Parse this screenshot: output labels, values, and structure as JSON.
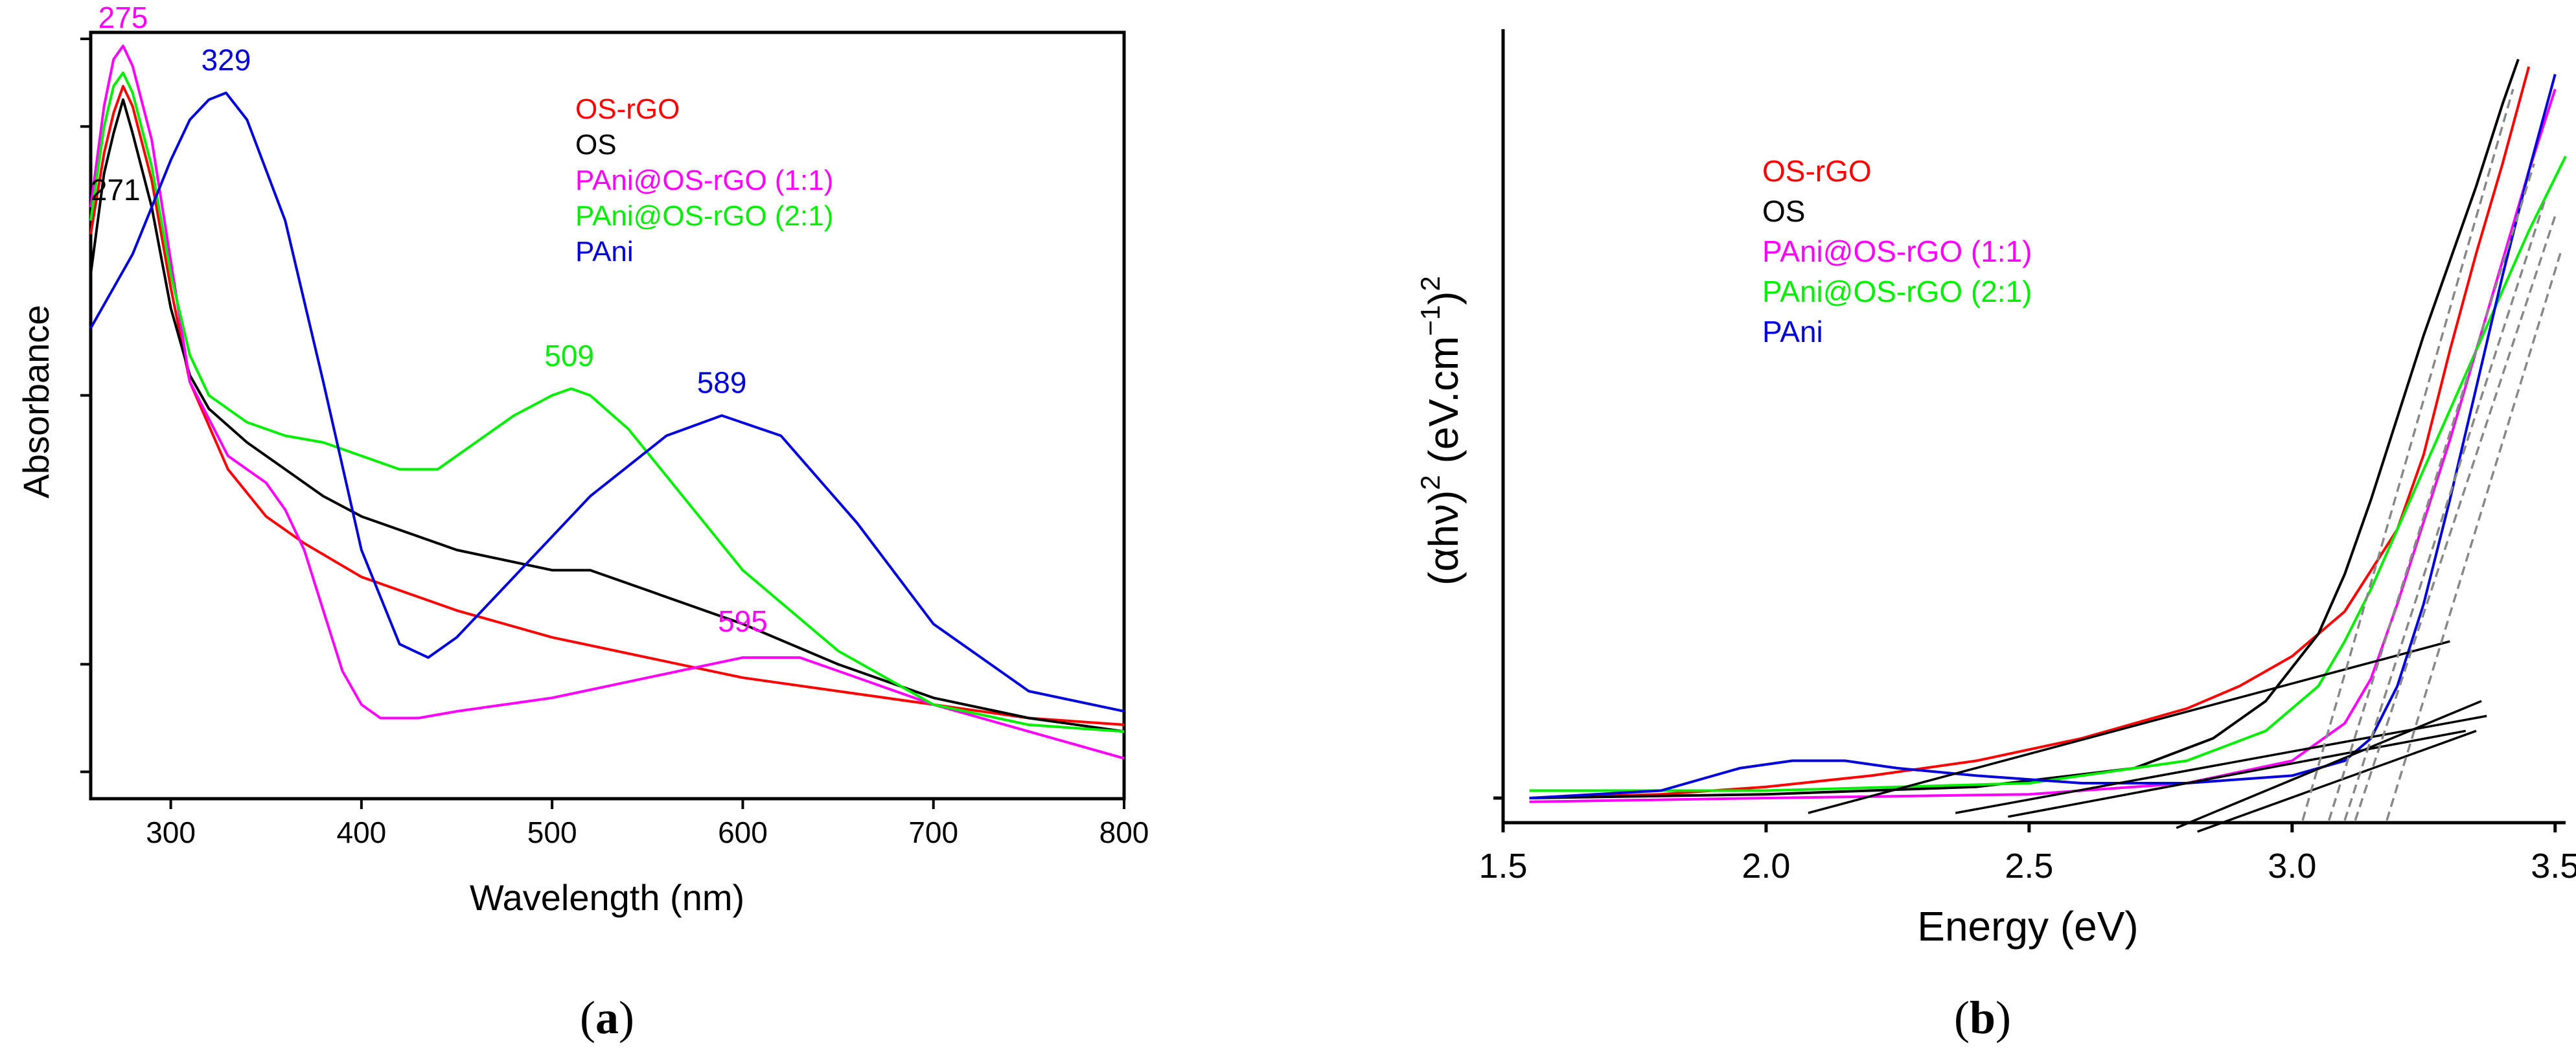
{
  "chart_data": [
    {
      "panel": "(a)",
      "panel_letter": "a",
      "type": "line",
      "xlabel": "Wavelength (nm)",
      "ylabel": "Absorbance",
      "xlim": [
        258,
        800
      ],
      "ylim": [
        -0.06,
        1.08
      ],
      "xticks": [
        300,
        400,
        500,
        600,
        700,
        800
      ],
      "yticks": [
        -0.02,
        0.14,
        0.54,
        0.94,
        1.1
      ],
      "legend_position": "top-right",
      "series": [
        {
          "name": "OS-rGO",
          "color": "#ff0000",
          "x": [
            258,
            265,
            270,
            275,
            280,
            290,
            300,
            310,
            330,
            350,
            370,
            400,
            450,
            500,
            550,
            600,
            650,
            700,
            750,
            800
          ],
          "y": [
            0.78,
            0.9,
            0.96,
            1.0,
            0.97,
            0.86,
            0.7,
            0.56,
            0.43,
            0.36,
            0.32,
            0.27,
            0.22,
            0.18,
            0.15,
            0.12,
            0.1,
            0.08,
            0.06,
            0.05
          ]
        },
        {
          "name": "OS",
          "color": "#000000",
          "x": [
            258,
            265,
            270,
            275,
            280,
            290,
            300,
            310,
            320,
            340,
            360,
            380,
            400,
            450,
            500,
            520,
            550,
            600,
            650,
            700,
            750,
            800
          ],
          "y": [
            0.72,
            0.87,
            0.93,
            0.98,
            0.93,
            0.82,
            0.67,
            0.57,
            0.52,
            0.47,
            0.43,
            0.39,
            0.36,
            0.31,
            0.28,
            0.28,
            0.25,
            0.2,
            0.14,
            0.09,
            0.06,
            0.04
          ]
        },
        {
          "name": "PAni@OS-rGO (1:1)",
          "color": "#ff00ff",
          "x": [
            258,
            265,
            270,
            275,
            280,
            290,
            300,
            310,
            330,
            350,
            360,
            370,
            380,
            390,
            400,
            410,
            430,
            450,
            500,
            550,
            600,
            630,
            650,
            700,
            750,
            800
          ],
          "y": [
            0.82,
            0.97,
            1.04,
            1.06,
            1.03,
            0.92,
            0.74,
            0.56,
            0.45,
            0.41,
            0.37,
            0.31,
            0.22,
            0.13,
            0.08,
            0.06,
            0.06,
            0.07,
            0.09,
            0.12,
            0.15,
            0.15,
            0.13,
            0.08,
            0.04,
            0.0
          ]
        },
        {
          "name": "PAni@OS-rGO (2:1)",
          "color": "#00ee00",
          "x": [
            258,
            265,
            270,
            275,
            280,
            290,
            300,
            310,
            320,
            340,
            360,
            380,
            400,
            420,
            440,
            460,
            480,
            500,
            510,
            520,
            540,
            560,
            600,
            650,
            700,
            750,
            800
          ],
          "y": [
            0.8,
            0.94,
            1.0,
            1.02,
            0.99,
            0.88,
            0.72,
            0.6,
            0.54,
            0.5,
            0.48,
            0.47,
            0.45,
            0.43,
            0.43,
            0.47,
            0.51,
            0.54,
            0.55,
            0.54,
            0.49,
            0.42,
            0.28,
            0.16,
            0.08,
            0.05,
            0.04
          ]
        },
        {
          "name": "PAni",
          "color": "#0000dd",
          "x": [
            258,
            270,
            280,
            290,
            300,
            310,
            320,
            329,
            340,
            360,
            380,
            400,
            420,
            435,
            450,
            480,
            520,
            560,
            589,
            620,
            660,
            700,
            750,
            800
          ],
          "y": [
            0.64,
            0.7,
            0.75,
            0.82,
            0.89,
            0.95,
            0.98,
            0.99,
            0.95,
            0.8,
            0.56,
            0.31,
            0.17,
            0.15,
            0.18,
            0.27,
            0.39,
            0.48,
            0.51,
            0.48,
            0.35,
            0.2,
            0.1,
            0.07
          ]
        }
      ],
      "annotations": [
        {
          "text": "275",
          "color": "#ff00ff",
          "x": 275,
          "y": 1.06
        },
        {
          "text": "271",
          "color": "#000000",
          "x": 271,
          "y": 0.98
        },
        {
          "text": "329",
          "color": "#0000dd",
          "x": 329,
          "y": 0.99
        },
        {
          "text": "509",
          "color": "#00ee00",
          "x": 509,
          "y": 0.55
        },
        {
          "text": "589",
          "color": "#0000dd",
          "x": 589,
          "y": 0.51
        },
        {
          "text": "595",
          "color": "#ff00ff",
          "x": 600,
          "y": 0.15
        }
      ]
    },
    {
      "panel": "(b)",
      "panel_letter": "b",
      "type": "line",
      "xlabel": "Energy (eV)",
      "ylabel_main": "(αhν)",
      "ylabel_sup": "2",
      "ylabel_unit": "(eV.cm",
      "ylabel_unit_sup": "−1",
      "ylabel_unit_close": ")",
      "ylabel_unit_sup2": "2",
      "xlim": [
        1.5,
        3.52
      ],
      "ylim": [
        -0.03,
        1.0
      ],
      "xticks": [
        1.5,
        2.0,
        2.5,
        3.0,
        3.5
      ],
      "xtick_labels": [
        "1.5",
        "2.0",
        "2.5",
        "3.0",
        "3.5"
      ],
      "legend_position": "top-left",
      "series": [
        {
          "name": "OS-rGO",
          "color": "#ff0000",
          "x": [
            1.55,
            1.8,
            2.0,
            2.2,
            2.4,
            2.6,
            2.8,
            2.9,
            3.0,
            3.1,
            3.2,
            3.25,
            3.3,
            3.35,
            3.4,
            3.45
          ],
          "y": [
            0.0,
            0.005,
            0.015,
            0.03,
            0.05,
            0.08,
            0.12,
            0.15,
            0.19,
            0.25,
            0.36,
            0.46,
            0.6,
            0.73,
            0.85,
            0.98
          ]
        },
        {
          "name": "OS",
          "color": "#000000",
          "x": [
            1.55,
            2.0,
            2.4,
            2.7,
            2.85,
            2.95,
            3.05,
            3.1,
            3.15,
            3.2,
            3.25,
            3.3,
            3.35,
            3.4,
            3.43
          ],
          "y": [
            0.0,
            0.005,
            0.015,
            0.04,
            0.08,
            0.13,
            0.22,
            0.3,
            0.4,
            0.51,
            0.62,
            0.72,
            0.82,
            0.93,
            0.99
          ]
        },
        {
          "name": "PAni@OS-rGO (1:1)",
          "color": "#ff00ff",
          "x": [
            1.55,
            2.0,
            2.5,
            2.8,
            3.0,
            3.1,
            3.15,
            3.2,
            3.25,
            3.3,
            3.35,
            3.4,
            3.45,
            3.5
          ],
          "y": [
            -0.005,
            0.0,
            0.005,
            0.02,
            0.05,
            0.1,
            0.16,
            0.26,
            0.37,
            0.48,
            0.6,
            0.72,
            0.84,
            0.95
          ]
        },
        {
          "name": "PAni@OS-rGO (2:1)",
          "color": "#00ee00",
          "x": [
            1.55,
            2.0,
            2.5,
            2.8,
            2.95,
            3.05,
            3.1,
            3.15,
            3.2,
            3.25,
            3.3,
            3.35,
            3.4,
            3.45,
            3.52
          ],
          "y": [
            0.01,
            0.01,
            0.02,
            0.05,
            0.09,
            0.15,
            0.21,
            0.28,
            0.36,
            0.44,
            0.52,
            0.6,
            0.68,
            0.76,
            0.86
          ]
        },
        {
          "name": "PAni",
          "color": "#0000dd",
          "x": [
            1.55,
            1.8,
            1.95,
            2.05,
            2.15,
            2.25,
            2.4,
            2.6,
            2.8,
            3.0,
            3.1,
            3.15,
            3.2,
            3.25,
            3.3,
            3.35,
            3.4,
            3.45,
            3.5
          ],
          "y": [
            0.0,
            0.01,
            0.04,
            0.05,
            0.05,
            0.04,
            0.03,
            0.02,
            0.02,
            0.03,
            0.05,
            0.08,
            0.15,
            0.26,
            0.4,
            0.55,
            0.7,
            0.84,
            0.97
          ]
        }
      ],
      "tangent_lines": [
        {
          "x1": 2.08,
          "y1": -0.02,
          "x2": 3.3,
          "y2": 0.21,
          "style": "solid"
        },
        {
          "x1": 2.36,
          "y1": -0.02,
          "x2": 3.37,
          "y2": 0.11,
          "style": "solid"
        },
        {
          "x1": 2.46,
          "y1": -0.025,
          "x2": 3.33,
          "y2": 0.09,
          "style": "solid"
        },
        {
          "x1": 2.78,
          "y1": -0.04,
          "x2": 3.36,
          "y2": 0.13,
          "style": "solid"
        },
        {
          "x1": 2.82,
          "y1": -0.045,
          "x2": 3.35,
          "y2": 0.09,
          "style": "solid"
        },
        {
          "x1": 3.02,
          "y1": -0.03,
          "x2": 3.42,
          "y2": 0.95,
          "style": "dashed"
        },
        {
          "x1": 3.07,
          "y1": -0.03,
          "x2": 3.46,
          "y2": 0.85,
          "style": "dashed"
        },
        {
          "x1": 3.1,
          "y1": -0.03,
          "x2": 3.48,
          "y2": 0.8,
          "style": "dashed"
        },
        {
          "x1": 3.12,
          "y1": -0.03,
          "x2": 3.5,
          "y2": 0.78,
          "style": "dashed"
        },
        {
          "x1": 3.18,
          "y1": -0.03,
          "x2": 3.51,
          "y2": 0.73,
          "style": "dashed"
        }
      ]
    }
  ],
  "legend": {
    "entries": [
      {
        "label": "OS-rGO",
        "color": "#ff0000"
      },
      {
        "label": "OS",
        "color": "#000000"
      },
      {
        "label": "PAni@OS-rGO (1:1)",
        "color": "#ff00ff"
      },
      {
        "label": "PAni@OS-rGO (2:1)",
        "color": "#00ee00"
      },
      {
        "label": "PAni",
        "color": "#0000dd"
      }
    ]
  }
}
